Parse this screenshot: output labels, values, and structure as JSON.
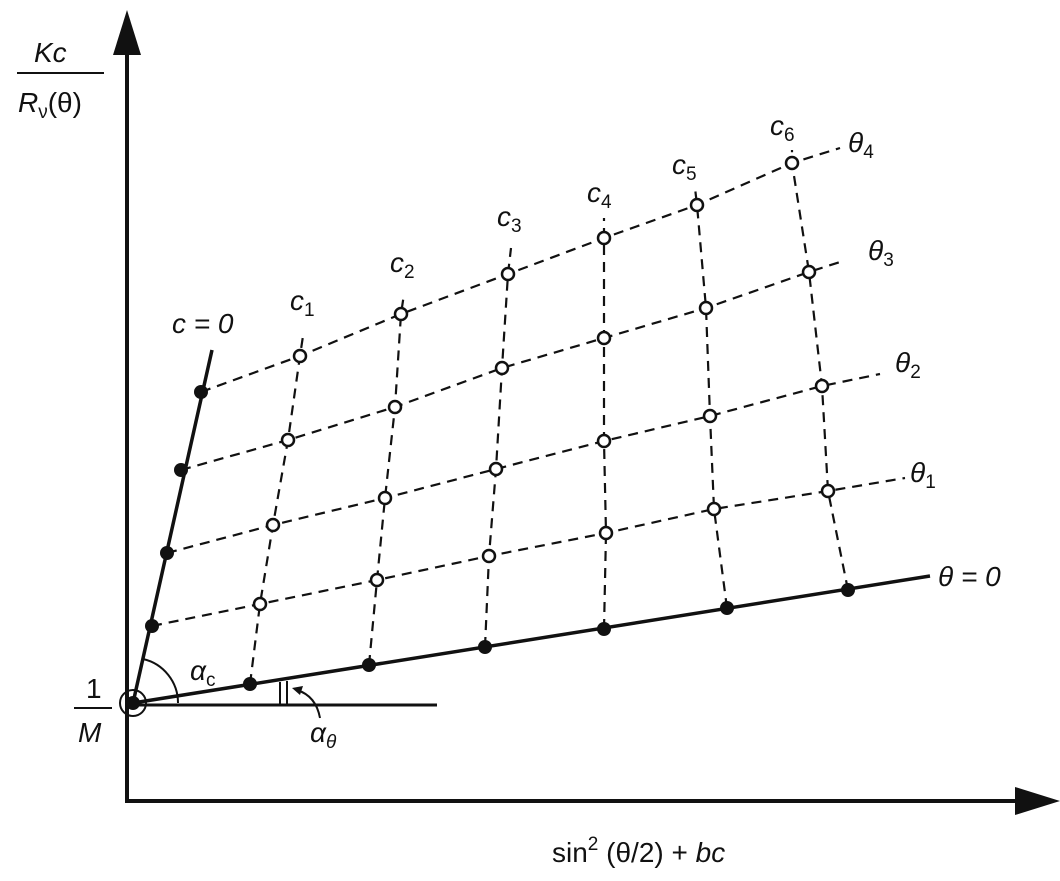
{
  "y_axis_label": {
    "numerator": "Kc",
    "denominator_main": "R",
    "denominator_sub": "ν",
    "denominator_tail": "(θ)"
  },
  "x_axis_label": {
    "part1": "sin",
    "sup": "2",
    "part2": " (θ/2) + ",
    "part3": "bc"
  },
  "intercept_label": {
    "numerator": "1",
    "denominator": "M"
  },
  "c_zero_label": "c = 0",
  "theta_zero_label": "θ = 0",
  "concentration_labels": [
    {
      "main": "c",
      "sub": "1"
    },
    {
      "main": "c",
      "sub": "2"
    },
    {
      "main": "c",
      "sub": "3"
    },
    {
      "main": "c",
      "sub": "4"
    },
    {
      "main": "c",
      "sub": "5"
    },
    {
      "main": "c",
      "sub": "6"
    }
  ],
  "angle_labels": [
    {
      "main": "θ",
      "sub": "1"
    },
    {
      "main": "θ",
      "sub": "2"
    },
    {
      "main": "θ",
      "sub": "3"
    },
    {
      "main": "θ",
      "sub": "4"
    }
  ],
  "alpha_c_label": {
    "main": "α",
    "sub": "c"
  },
  "alpha_theta_label": {
    "main": "α",
    "sub": "θ"
  },
  "colors": {
    "ink": "#111111",
    "background": "#ffffff"
  }
}
